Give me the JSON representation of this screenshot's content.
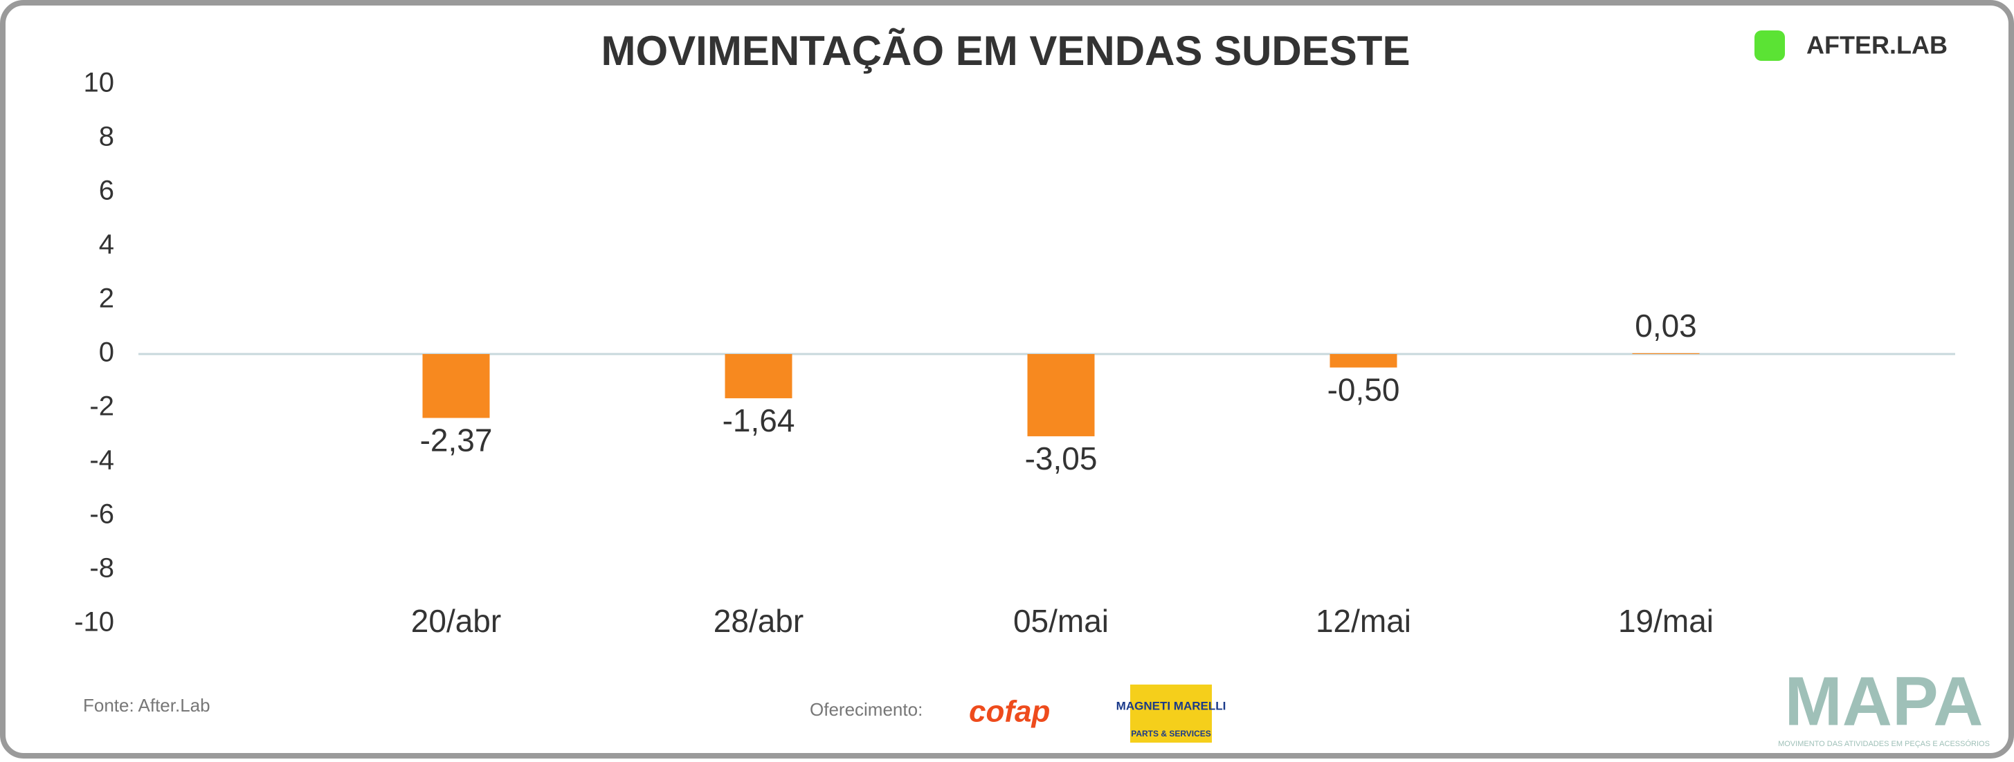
{
  "chart_data": {
    "type": "bar",
    "title": "MOVIMENTAÇÃO EM VENDAS SUDESTE",
    "categories": [
      "20/abr",
      "28/abr",
      "05/mai",
      "12/mai",
      "19/mai"
    ],
    "values": [
      -2.37,
      -1.64,
      -3.05,
      -0.5,
      0.03
    ],
    "value_labels": [
      "-2,37",
      "-1,64",
      "-3,05",
      "-0,50",
      "0,03"
    ],
    "color": "#f7891f",
    "ylim": [
      -10,
      10
    ],
    "yticks": [
      -10,
      -8,
      -6,
      -4,
      -2,
      0,
      2,
      4,
      6,
      8,
      10
    ],
    "grid": false
  },
  "footer": {
    "source": "Fonte: After.Lab",
    "sponsor_label": "Oferecimento:",
    "sponsor_1": "cofap",
    "sponsor_2": "MAGNETI MARELLI",
    "sponsor_2_sub": "PARTS & SERVICES",
    "brand": "MAPA",
    "brand_sub": "MOVIMENTO DAS ATIVIDADES EM PEÇAS E ACESSÓRIOS"
  },
  "header": {
    "logo": "AFTER.LAB"
  }
}
